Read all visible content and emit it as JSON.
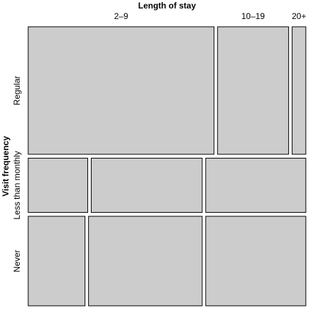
{
  "chart_data": {
    "type": "mosaic",
    "title": "Length of stay",
    "y_label": "Visit frequency",
    "categories": [
      "2–9",
      "10–19",
      "20+"
    ],
    "row_categories": [
      "Regular",
      "Less than monthly",
      "Never"
    ],
    "row_values": [
      47,
      20,
      33
    ],
    "cells": [
      [
        68,
        26,
        5
      ],
      [
        22,
        41,
        37
      ],
      [
        21,
        42,
        37
      ]
    ],
    "color": "#cccccc"
  }
}
